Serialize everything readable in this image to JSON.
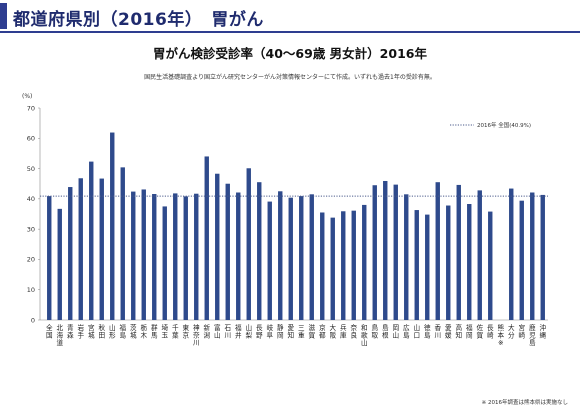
{
  "header": {
    "title": "都道府県別（2016年）　胃がん"
  },
  "chart_title": "胃がん検診受診率（40～69歳 男女計）2016年",
  "chart_subtitle": "国民生活基礎調査より国立がん研究センターがん対策情報センターにて作成。いずれも過去1年の受診有無。",
  "footnote": "※ 2016年調査は熊本県は実施なし",
  "colors": {
    "accent": "#2e3d90",
    "bar": "#2e4a8c",
    "reference_line": "#4a5a8a"
  },
  "chart_data": {
    "type": "bar",
    "title": "胃がん検診受診率（40～69歳 男女計）2016年",
    "ylabel": "(%)",
    "ylim": [
      0,
      70
    ],
    "yticks": [
      0,
      10,
      20,
      30,
      40,
      50,
      60,
      70
    ],
    "grid": false,
    "legend_position": "top-right",
    "reference_line": {
      "label": "2016年 全国(40.9%)",
      "value": 40.9,
      "style": "dotted"
    },
    "categories": [
      "全国",
      "北海道",
      "青森",
      "岩手",
      "宮城",
      "秋田",
      "山形",
      "福島",
      "茨城",
      "栃木",
      "群馬",
      "埼玉",
      "千葉",
      "東京",
      "神奈川",
      "新潟",
      "富山",
      "石川",
      "福井",
      "山梨",
      "長野",
      "岐阜",
      "静岡",
      "愛知",
      "三重",
      "滋賀",
      "京都",
      "大阪",
      "兵庫",
      "奈良",
      "和歌山",
      "鳥取",
      "島根",
      "岡山",
      "広島",
      "山口",
      "徳島",
      "香川",
      "愛媛",
      "高知",
      "福岡",
      "佐賀",
      "長崎",
      "熊本",
      "大分",
      "宮崎",
      "鹿児島",
      "沖縄"
    ],
    "category_footnote": {
      "熊本": "※"
    },
    "values": [
      40.9,
      36.7,
      43.9,
      46.8,
      52.3,
      46.7,
      61.9,
      50.4,
      42.4,
      43.1,
      41.6,
      37.5,
      41.8,
      40.8,
      41.7,
      54.0,
      48.3,
      45.0,
      42.1,
      50.1,
      45.5,
      39.1,
      42.5,
      40.4,
      40.9,
      41.5,
      35.5,
      33.8,
      35.9,
      36.1,
      38.0,
      44.5,
      45.9,
      44.7,
      41.5,
      36.3,
      34.8,
      45.5,
      37.8,
      44.6,
      38.3,
      42.8,
      35.8,
      null,
      43.4,
      39.4,
      42.1,
      41.3
    ]
  }
}
